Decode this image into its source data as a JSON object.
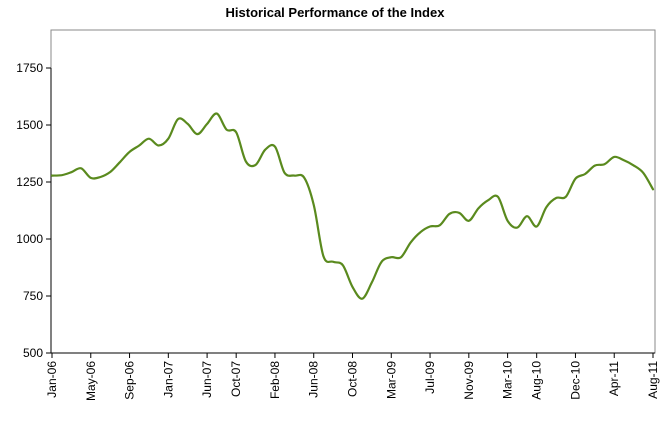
{
  "chart_data": {
    "type": "line",
    "title": "Historical Performance of the Index",
    "xlabel": "",
    "ylabel": "",
    "ylim": [
      500,
      1750
    ],
    "yticks": [
      500,
      750,
      1000,
      1250,
      1500,
      1750
    ],
    "ytick_labels": [
      "500",
      "750",
      "1000",
      "1250",
      "1500",
      "1750"
    ],
    "xtick_labels": [
      "Jan-06",
      "May-06",
      "Sep-06",
      "Jan-07",
      "Jun-07",
      "Oct-07",
      "Feb-08",
      "Jun-08",
      "Oct-08",
      "Mar-09",
      "Jul-09",
      "Nov-09",
      "Mar-10",
      "Aug-10",
      "Dec-10",
      "Apr-11",
      "Aug-11"
    ],
    "grid": false,
    "legend": "none",
    "series": [
      {
        "color": "#5a8a1e",
        "values": [
          1278,
          1280,
          1293,
          1310,
          1268,
          1272,
          1294,
          1337,
          1382,
          1410,
          1440,
          1410,
          1440,
          1526,
          1505,
          1460,
          1505,
          1550,
          1480,
          1468,
          1340,
          1325,
          1392,
          1405,
          1290,
          1278,
          1270,
          1150,
          925,
          900,
          885,
          790,
          738,
          810,
          900,
          920,
          920,
          985,
          1030,
          1055,
          1060,
          1110,
          1115,
          1080,
          1135,
          1170,
          1185,
          1080,
          1050,
          1100,
          1055,
          1140,
          1180,
          1185,
          1265,
          1285,
          1322,
          1328,
          1360,
          1345,
          1323,
          1290,
          1218
        ]
      }
    ]
  }
}
